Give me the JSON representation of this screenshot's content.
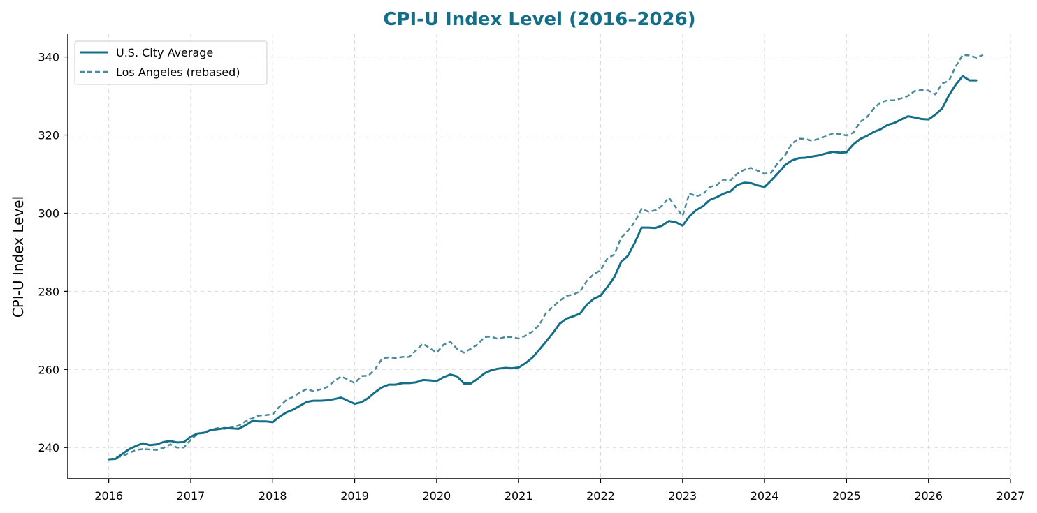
{
  "chart_data": {
    "type": "line",
    "title": "CPI-U Index Level (2016–2026)",
    "xlabel": "",
    "ylabel": "CPI-U Index Level",
    "xlim": [
      2015.5,
      2027.0
    ],
    "ylim": [
      232,
      346
    ],
    "x_ticks": [
      2016,
      2017,
      2018,
      2019,
      2020,
      2021,
      2022,
      2023,
      2024,
      2025,
      2026,
      2027
    ],
    "x_tick_labels": [
      "2016",
      "2017",
      "2018",
      "2019",
      "2020",
      "2021",
      "2022",
      "2023",
      "2024",
      "2025",
      "2026",
      "2027"
    ],
    "y_ticks": [
      240,
      260,
      280,
      300,
      320,
      340
    ],
    "y_tick_labels": [
      "240",
      "260",
      "280",
      "300",
      "320",
      "340"
    ],
    "grid": true,
    "legend": "top-left",
    "colors": {
      "title": "#136f87",
      "us_city_average": "#136f87",
      "los_angeles": "#4a8a99",
      "grid": "#d9d9d9"
    },
    "series": [
      {
        "name": "U.S. City Average",
        "style": "solid",
        "points": [
          [
            2016.0,
            237.0
          ],
          [
            2016.083,
            237.1
          ],
          [
            2016.167,
            238.4
          ],
          [
            2016.25,
            239.6
          ],
          [
            2016.333,
            240.4
          ],
          [
            2016.417,
            241.1
          ],
          [
            2016.5,
            240.6
          ],
          [
            2016.583,
            240.8
          ],
          [
            2016.667,
            241.4
          ],
          [
            2016.75,
            241.7
          ],
          [
            2016.833,
            241.3
          ],
          [
            2016.917,
            241.4
          ],
          [
            2017.0,
            242.8
          ],
          [
            2017.083,
            243.6
          ],
          [
            2017.167,
            243.8
          ],
          [
            2017.25,
            244.5
          ],
          [
            2017.333,
            244.7
          ],
          [
            2017.417,
            245.0
          ],
          [
            2017.5,
            244.9
          ],
          [
            2017.583,
            244.8
          ],
          [
            2017.667,
            245.7
          ],
          [
            2017.75,
            246.8
          ],
          [
            2017.833,
            246.7
          ],
          [
            2017.917,
            246.7
          ],
          [
            2018.0,
            246.5
          ],
          [
            2018.083,
            247.9
          ],
          [
            2018.167,
            249.0
          ],
          [
            2018.25,
            249.7
          ],
          [
            2018.333,
            250.7
          ],
          [
            2018.417,
            251.7
          ],
          [
            2018.5,
            252.0
          ],
          [
            2018.583,
            252.0
          ],
          [
            2018.667,
            252.1
          ],
          [
            2018.75,
            252.4
          ],
          [
            2018.833,
            252.8
          ],
          [
            2018.917,
            252.0
          ],
          [
            2019.0,
            251.2
          ],
          [
            2019.083,
            251.6
          ],
          [
            2019.167,
            252.7
          ],
          [
            2019.25,
            254.2
          ],
          [
            2019.333,
            255.4
          ],
          [
            2019.417,
            256.1
          ],
          [
            2019.5,
            256.1
          ],
          [
            2019.583,
            256.5
          ],
          [
            2019.667,
            256.5
          ],
          [
            2019.75,
            256.7
          ],
          [
            2019.833,
            257.3
          ],
          [
            2019.917,
            257.2
          ],
          [
            2020.0,
            257.0
          ],
          [
            2020.083,
            258.0
          ],
          [
            2020.167,
            258.7
          ],
          [
            2020.25,
            258.2
          ],
          [
            2020.333,
            256.4
          ],
          [
            2020.417,
            256.4
          ],
          [
            2020.5,
            257.6
          ],
          [
            2020.583,
            259.0
          ],
          [
            2020.667,
            259.8
          ],
          [
            2020.75,
            260.2
          ],
          [
            2020.833,
            260.4
          ],
          [
            2020.917,
            260.3
          ],
          [
            2021.0,
            260.5
          ],
          [
            2021.083,
            261.6
          ],
          [
            2021.167,
            263.0
          ],
          [
            2021.25,
            265.0
          ],
          [
            2021.333,
            267.1
          ],
          [
            2021.417,
            269.3
          ],
          [
            2021.5,
            271.7
          ],
          [
            2021.583,
            273.0
          ],
          [
            2021.667,
            273.6
          ],
          [
            2021.75,
            274.3
          ],
          [
            2021.833,
            276.6
          ],
          [
            2021.917,
            278.1
          ],
          [
            2022.0,
            278.9
          ],
          [
            2022.083,
            281.1
          ],
          [
            2022.167,
            283.6
          ],
          [
            2022.25,
            287.5
          ],
          [
            2022.333,
            289.1
          ],
          [
            2022.417,
            292.4
          ],
          [
            2022.5,
            296.3
          ],
          [
            2022.583,
            296.3
          ],
          [
            2022.667,
            296.2
          ],
          [
            2022.75,
            296.8
          ],
          [
            2022.833,
            298.0
          ],
          [
            2022.917,
            297.7
          ],
          [
            2023.0,
            296.8
          ],
          [
            2023.083,
            299.2
          ],
          [
            2023.167,
            300.8
          ],
          [
            2023.25,
            301.8
          ],
          [
            2023.333,
            303.4
          ],
          [
            2023.417,
            304.1
          ],
          [
            2023.5,
            305.0
          ],
          [
            2023.583,
            305.6
          ],
          [
            2023.667,
            307.2
          ],
          [
            2023.75,
            307.8
          ],
          [
            2023.833,
            307.7
          ],
          [
            2023.917,
            307.1
          ],
          [
            2024.0,
            306.7
          ],
          [
            2024.083,
            308.4
          ],
          [
            2024.167,
            310.3
          ],
          [
            2024.25,
            312.3
          ],
          [
            2024.333,
            313.5
          ],
          [
            2024.417,
            314.1
          ],
          [
            2024.5,
            314.2
          ],
          [
            2024.583,
            314.5
          ],
          [
            2024.667,
            314.8
          ],
          [
            2024.75,
            315.3
          ],
          [
            2024.833,
            315.7
          ],
          [
            2024.917,
            315.5
          ],
          [
            2025.0,
            315.6
          ],
          [
            2025.083,
            317.6
          ],
          [
            2025.167,
            319.0
          ],
          [
            2025.25,
            319.8
          ],
          [
            2025.333,
            320.8
          ],
          [
            2025.417,
            321.5
          ],
          [
            2025.5,
            322.6
          ],
          [
            2025.583,
            323.1
          ],
          [
            2025.667,
            324.0
          ],
          [
            2025.75,
            324.8
          ],
          [
            2025.833,
            324.5
          ],
          [
            2025.917,
            324.1
          ],
          [
            2026.0,
            324.0
          ],
          [
            2026.083,
            325.2
          ],
          [
            2026.167,
            326.8
          ],
          [
            2026.25,
            330.2
          ],
          [
            2026.333,
            332.9
          ],
          [
            2026.417,
            335.1
          ],
          [
            2026.5,
            334.0
          ],
          [
            2026.583,
            334.0
          ]
        ]
      },
      {
        "name": "Los Angeles (rebased)",
        "style": "dashed",
        "points": [
          [
            2016.0,
            236.9
          ],
          [
            2016.083,
            237.4
          ],
          [
            2016.167,
            237.8
          ],
          [
            2016.25,
            238.6
          ],
          [
            2016.333,
            239.4
          ],
          [
            2016.417,
            239.6
          ],
          [
            2016.5,
            239.5
          ],
          [
            2016.583,
            239.4
          ],
          [
            2016.667,
            239.9
          ],
          [
            2016.75,
            240.8
          ],
          [
            2016.833,
            240.0
          ],
          [
            2016.917,
            240.0
          ],
          [
            2017.0,
            242.0
          ],
          [
            2017.083,
            243.5
          ],
          [
            2017.167,
            243.9
          ],
          [
            2017.25,
            244.6
          ],
          [
            2017.333,
            245.0
          ],
          [
            2017.417,
            244.8
          ],
          [
            2017.5,
            245.2
          ],
          [
            2017.583,
            245.6
          ],
          [
            2017.667,
            246.7
          ],
          [
            2017.75,
            247.5
          ],
          [
            2017.833,
            248.2
          ],
          [
            2017.917,
            248.3
          ],
          [
            2018.0,
            248.5
          ],
          [
            2018.083,
            250.5
          ],
          [
            2018.167,
            252.2
          ],
          [
            2018.25,
            253.0
          ],
          [
            2018.333,
            254.1
          ],
          [
            2018.417,
            255.0
          ],
          [
            2018.5,
            254.4
          ],
          [
            2018.583,
            254.9
          ],
          [
            2018.667,
            255.5
          ],
          [
            2018.75,
            257.0
          ],
          [
            2018.833,
            258.2
          ],
          [
            2018.917,
            257.4
          ],
          [
            2019.0,
            256.5
          ],
          [
            2019.083,
            258.3
          ],
          [
            2019.167,
            258.4
          ],
          [
            2019.25,
            260.1
          ],
          [
            2019.333,
            262.7
          ],
          [
            2019.417,
            263.1
          ],
          [
            2019.5,
            262.9
          ],
          [
            2019.583,
            263.2
          ],
          [
            2019.667,
            263.2
          ],
          [
            2019.75,
            264.9
          ],
          [
            2019.833,
            266.6
          ],
          [
            2019.917,
            265.4
          ],
          [
            2020.0,
            264.3
          ],
          [
            2020.083,
            266.3
          ],
          [
            2020.167,
            267.1
          ],
          [
            2020.25,
            265.2
          ],
          [
            2020.333,
            264.3
          ],
          [
            2020.417,
            265.3
          ],
          [
            2020.5,
            266.4
          ],
          [
            2020.583,
            268.3
          ],
          [
            2020.667,
            268.4
          ],
          [
            2020.75,
            267.8
          ],
          [
            2020.833,
            268.3
          ],
          [
            2020.917,
            268.3
          ],
          [
            2021.0,
            267.9
          ],
          [
            2021.083,
            268.6
          ],
          [
            2021.167,
            269.7
          ],
          [
            2021.25,
            271.3
          ],
          [
            2021.333,
            274.4
          ],
          [
            2021.417,
            276.0
          ],
          [
            2021.5,
            277.6
          ],
          [
            2021.583,
            278.8
          ],
          [
            2021.667,
            279.2
          ],
          [
            2021.75,
            280.0
          ],
          [
            2021.833,
            282.7
          ],
          [
            2021.917,
            284.4
          ],
          [
            2022.0,
            285.4
          ],
          [
            2022.083,
            288.4
          ],
          [
            2022.167,
            289.4
          ],
          [
            2022.25,
            293.7
          ],
          [
            2022.333,
            295.5
          ],
          [
            2022.417,
            297.7
          ],
          [
            2022.5,
            301.1
          ],
          [
            2022.583,
            300.4
          ],
          [
            2022.667,
            300.7
          ],
          [
            2022.75,
            301.9
          ],
          [
            2022.833,
            304.0
          ],
          [
            2022.917,
            301.5
          ],
          [
            2023.0,
            299.3
          ],
          [
            2023.083,
            305.1
          ],
          [
            2023.167,
            304.3
          ],
          [
            2023.25,
            304.9
          ],
          [
            2023.333,
            306.7
          ],
          [
            2023.417,
            307.2
          ],
          [
            2023.5,
            308.6
          ],
          [
            2023.583,
            308.4
          ],
          [
            2023.667,
            310.1
          ],
          [
            2023.75,
            311.1
          ],
          [
            2023.833,
            311.6
          ],
          [
            2023.917,
            310.9
          ],
          [
            2024.0,
            310.1
          ],
          [
            2024.083,
            310.4
          ],
          [
            2024.167,
            313.0
          ],
          [
            2024.25,
            314.8
          ],
          [
            2024.333,
            317.8
          ],
          [
            2024.417,
            319.1
          ],
          [
            2024.5,
            319.0
          ],
          [
            2024.583,
            318.5
          ],
          [
            2024.667,
            319.1
          ],
          [
            2024.75,
            319.7
          ],
          [
            2024.833,
            320.4
          ],
          [
            2024.917,
            320.3
          ],
          [
            2025.0,
            319.9
          ],
          [
            2025.083,
            320.6
          ],
          [
            2025.167,
            323.4
          ],
          [
            2025.25,
            324.6
          ],
          [
            2025.333,
            326.8
          ],
          [
            2025.417,
            328.4
          ],
          [
            2025.5,
            328.9
          ],
          [
            2025.583,
            328.9
          ],
          [
            2025.667,
            329.4
          ],
          [
            2025.75,
            330.0
          ],
          [
            2025.833,
            331.3
          ],
          [
            2025.917,
            331.5
          ],
          [
            2026.0,
            331.4
          ],
          [
            2026.083,
            330.4
          ],
          [
            2026.167,
            333.2
          ],
          [
            2026.25,
            333.9
          ],
          [
            2026.333,
            337.6
          ],
          [
            2026.417,
            340.5
          ],
          [
            2026.5,
            340.4
          ],
          [
            2026.583,
            339.8
          ],
          [
            2026.667,
            340.5
          ]
        ]
      }
    ]
  }
}
